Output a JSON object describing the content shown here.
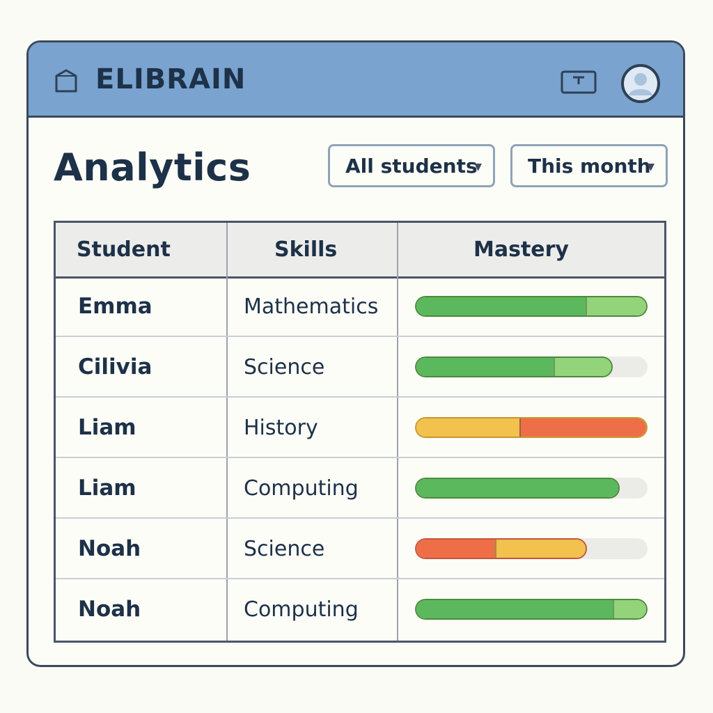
{
  "app": {
    "title": "ELIBRAIN",
    "logo_icon": "box-icon",
    "display_icon": "monitor-icon",
    "avatar_icon": "user-avatar-icon"
  },
  "page": {
    "title": "Analytics"
  },
  "filters": {
    "students": {
      "selected": "All students",
      "icon": "caret-down-icon"
    },
    "period": {
      "selected": "This month",
      "icon": "caret-down-icon"
    }
  },
  "table": {
    "headers": {
      "student": "Student",
      "skills": "Skills",
      "mastery": "Mastery"
    },
    "rows": [
      {
        "student": "Emma",
        "skill": "Mathematics",
        "mastery": 1.0,
        "segments": [
          {
            "share": 0.74,
            "color": "#5cb85c"
          },
          {
            "share": 0.26,
            "color": "#93d37a"
          }
        ]
      },
      {
        "student": "Cilivia",
        "skill": "Science",
        "mastery": 0.85,
        "segments": [
          {
            "share": 0.71,
            "color": "#5cb85c"
          },
          {
            "share": 0.29,
            "color": "#93d37a"
          }
        ]
      },
      {
        "student": "Liam",
        "skill": "History",
        "mastery": 1.0,
        "segments": [
          {
            "share": 0.45,
            "color": "#f2c14e"
          },
          {
            "share": 0.55,
            "color": "#ee6f47"
          }
        ]
      },
      {
        "student": "Liam",
        "skill": "Computing",
        "mastery": 0.88,
        "segments": [
          {
            "share": 1.0,
            "color": "#5cb85c"
          }
        ]
      },
      {
        "student": "Noah",
        "skill": "Science",
        "mastery": 0.74,
        "segments": [
          {
            "share": 0.47,
            "color": "#ee6f47"
          },
          {
            "share": 0.53,
            "color": "#f2c14e"
          }
        ]
      },
      {
        "student": "Noah",
        "skill": "Computing",
        "mastery": 1.0,
        "segments": [
          {
            "share": 0.86,
            "color": "#5cb85c"
          },
          {
            "share": 0.14,
            "color": "#93d37a"
          }
        ]
      }
    ]
  },
  "colors": {
    "header_bar": "#7aa3cf",
    "background": "#fdfdf8",
    "text": "#1d3148"
  }
}
